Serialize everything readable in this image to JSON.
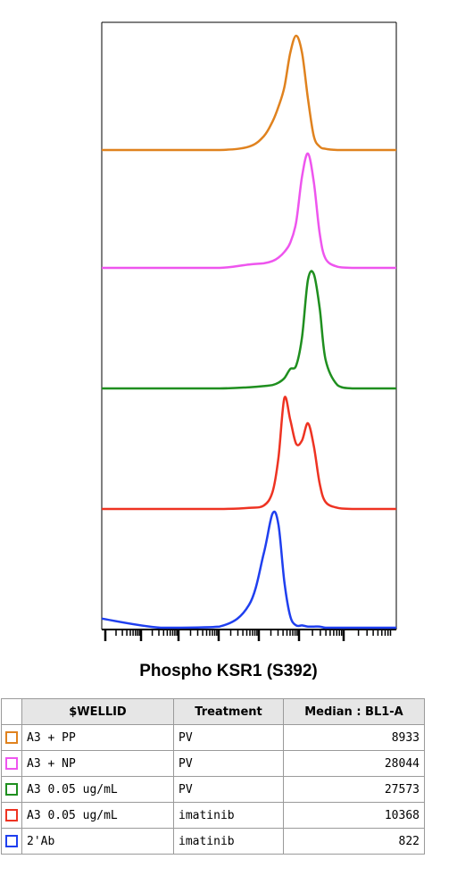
{
  "chart_data": {
    "type": "line",
    "title": "Phospho KSR1 (S392)",
    "xlabel": "",
    "ylabel": "",
    "x": [
      0,
      0.2,
      0.4,
      0.5,
      0.55,
      0.58,
      0.6,
      0.62,
      0.64,
      0.66,
      0.68,
      0.7,
      0.72,
      0.74,
      0.76,
      0.8,
      0.85,
      0.9,
      1.0
    ],
    "series": [
      {
        "name": "A3 + PP",
        "color": "#e0821e",
        "values": [
          0,
          0,
          0,
          0.03,
          0.12,
          0.25,
          0.38,
          0.55,
          0.85,
          1.0,
          0.85,
          0.45,
          0.12,
          0.03,
          0.01,
          0,
          0,
          0,
          0
        ]
      },
      {
        "name": "A3 + NP",
        "color": "#ee55ee",
        "values": [
          0,
          0,
          0,
          0.03,
          0.04,
          0.06,
          0.09,
          0.14,
          0.22,
          0.4,
          0.8,
          1.0,
          0.75,
          0.3,
          0.08,
          0.01,
          0,
          0,
          0
        ]
      },
      {
        "name": "A3 0.05 ug/mL PV",
        "color": "#1f8f1f",
        "values": [
          0,
          0,
          0,
          0.01,
          0.02,
          0.03,
          0.05,
          0.09,
          0.17,
          0.2,
          0.45,
          0.95,
          1.0,
          0.7,
          0.25,
          0.03,
          0,
          0,
          0
        ]
      },
      {
        "name": "A3 0.05 ug/mL imatinib",
        "color": "#ee3322",
        "values": [
          0,
          0,
          0,
          0.01,
          0.03,
          0.15,
          0.45,
          0.97,
          0.78,
          0.57,
          0.6,
          0.75,
          0.55,
          0.22,
          0.06,
          0.01,
          0,
          0,
          0
        ]
      },
      {
        "name": "2'Ab",
        "color": "#1f3fef",
        "values": [
          0.08,
          0,
          0.01,
          0.2,
          0.65,
          1.0,
          0.9,
          0.4,
          0.1,
          0.02,
          0.02,
          0.01,
          0.01,
          0.01,
          0,
          0,
          0,
          0,
          0
        ]
      }
    ],
    "grid": false,
    "legend": "bottom"
  },
  "legend_table": {
    "headers": [
      "$WELLID",
      "Treatment",
      "Median : BL1-A"
    ],
    "rows": [
      {
        "wellid": "A3 + PP",
        "treatment": "PV",
        "median": "8933",
        "color": "#e0821e"
      },
      {
        "wellid": "A3 + NP",
        "treatment": "PV",
        "median": "28044",
        "color": "#ee55ee"
      },
      {
        "wellid": "A3 0.05 ug/mL",
        "treatment": "PV",
        "median": "27573",
        "color": "#1f8f1f"
      },
      {
        "wellid": "A3 0.05 ug/mL",
        "treatment": "imatinib",
        "median": "10368",
        "color": "#ee3322"
      },
      {
        "wellid": "2'Ab",
        "treatment": "imatinib",
        "median": "822",
        "color": "#1f3fef"
      }
    ]
  }
}
